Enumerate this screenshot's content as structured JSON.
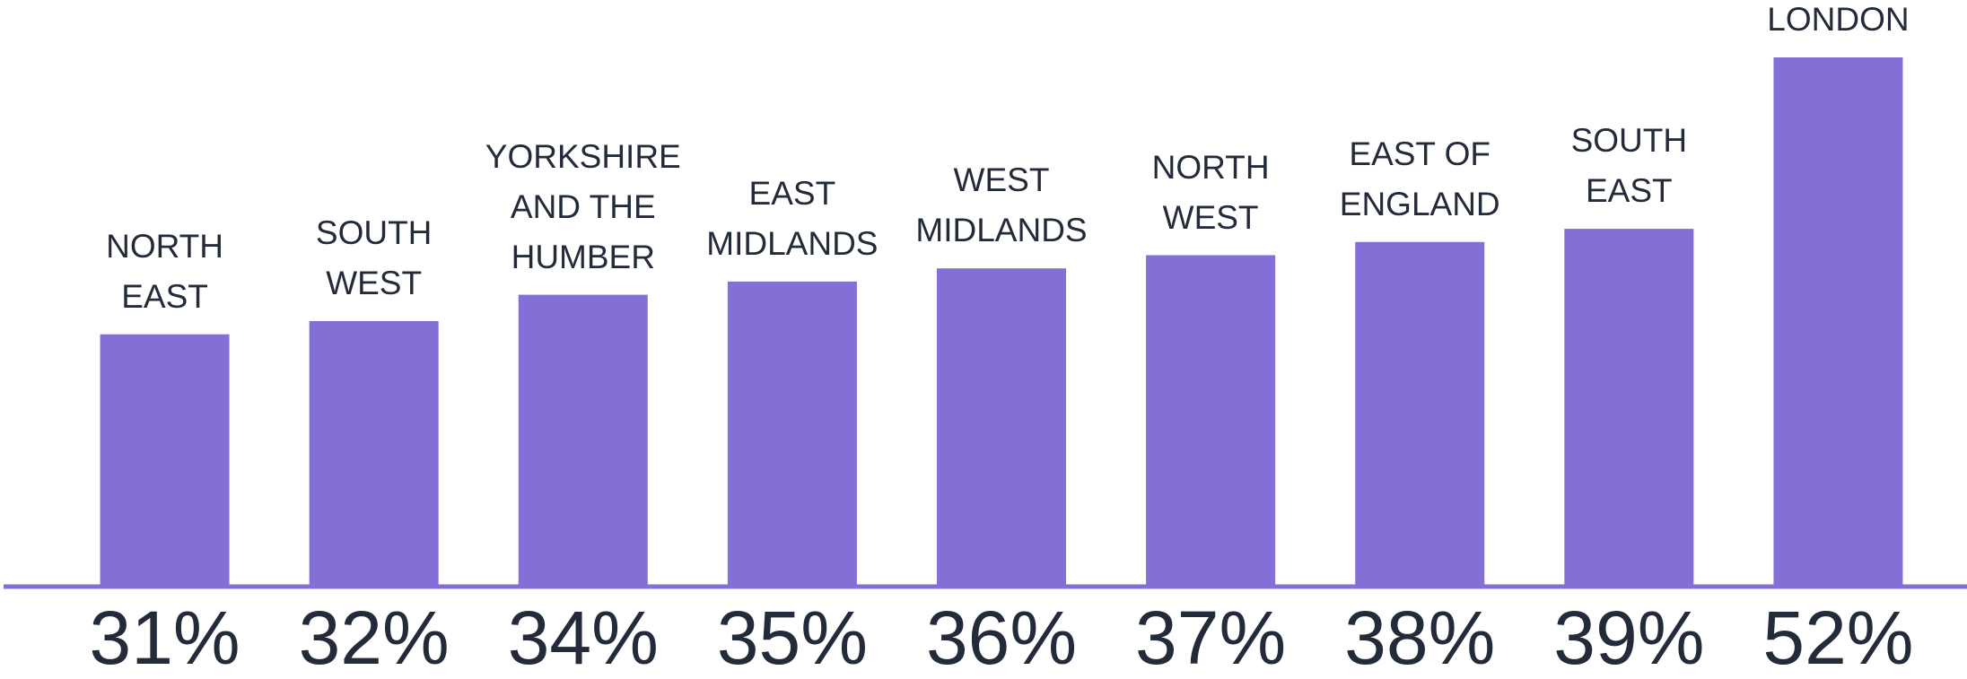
{
  "chart_data": {
    "type": "bar",
    "categories": [
      "NORTH EAST",
      "SOUTH WEST",
      "YORKSHIRE AND THE HUMBER",
      "EAST MIDLANDS",
      "WEST MIDLANDS",
      "NORTH WEST",
      "EAST OF ENGLAND",
      "SOUTH EAST",
      "LONDON"
    ],
    "values": [
      31,
      32,
      34,
      35,
      36,
      37,
      38,
      39,
      52
    ],
    "value_labels": [
      "31%",
      "32%",
      "34%",
      "35%",
      "36%",
      "37%",
      "38%",
      "39%",
      "52%"
    ],
    "color": "#836fd6",
    "ylim": [
      12,
      52
    ]
  }
}
